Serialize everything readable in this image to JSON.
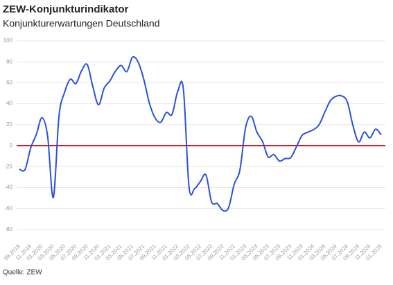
{
  "chart_data": {
    "type": "line",
    "title": "ZEW-Konjunkturindikator",
    "subtitle": "Konjunkturerwartungen Deutschland",
    "source": "Quelle: ZEW",
    "categories": [
      "09.2019",
      null,
      "11.2019",
      null,
      "01.2020",
      null,
      "03.2020",
      null,
      "05.2020",
      null,
      "07.2020",
      null,
      "09.2020",
      null,
      "11.2020",
      null,
      "01.2021",
      null,
      "03.2021",
      null,
      "05.2021",
      null,
      "07.2021",
      null,
      "09.2021",
      null,
      "11.2021",
      null,
      "01.2022",
      null,
      "03.2022",
      null,
      "05.2022",
      null,
      "07.2022",
      null,
      "09.2022",
      null,
      "11.2022",
      null,
      "01.2023",
      null,
      "03.2023",
      null,
      "05.2023",
      null,
      "07.2023",
      null,
      "09.2023",
      null,
      "11.2023",
      null,
      "01.2024",
      null,
      "03.2024",
      null,
      "05.2024",
      null,
      "07.2024",
      null,
      "09.2024",
      null,
      "11.2024",
      null,
      "01.2025"
    ],
    "series": [
      {
        "color": "#2a50dc",
        "values": [
          -22.5,
          -22.8,
          -2.1,
          10.7,
          26.7,
          8.7,
          -49.5,
          28.2,
          51.0,
          63.4,
          59.3,
          71.5,
          77.4,
          56.1,
          39.0,
          55.0,
          61.8,
          71.2,
          76.6,
          70.7,
          84.4,
          79.8,
          63.3,
          40.4,
          26.5,
          22.3,
          31.7,
          29.9,
          51.7,
          54.3,
          -39.3,
          -41.0,
          -34.3,
          -28.0,
          -53.8,
          -55.3,
          -61.9,
          -59.2,
          -36.7,
          -23.3,
          16.9,
          28.1,
          13.0,
          4.1,
          -10.7,
          -8.5,
          -14.7,
          -12.3,
          -11.4,
          -1.1,
          9.8,
          12.8,
          15.2,
          19.9,
          31.7,
          42.9,
          47.1,
          47.5,
          41.8,
          19.2,
          3.6,
          13.1,
          7.4,
          15.7,
          10.3
        ]
      }
    ],
    "reference_line": {
      "value": 0,
      "color": "#c8202a"
    },
    "ylim": [
      -90,
      100
    ],
    "yticks": [
      -80,
      -60,
      -40,
      -20,
      0,
      20,
      40,
      60,
      80,
      100
    ],
    "grid": true
  }
}
